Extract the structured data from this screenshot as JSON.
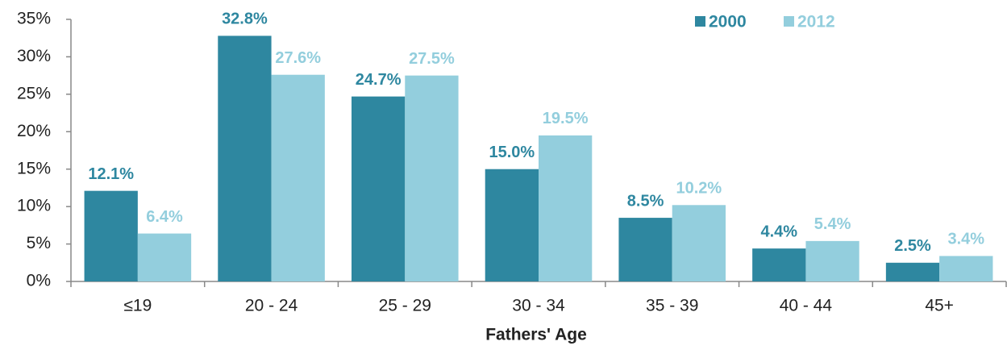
{
  "chart_data": {
    "type": "bar",
    "categories": [
      "≤19",
      "20 - 24",
      "25 - 29",
      "30 - 34",
      "35 - 39",
      "40 - 44",
      "45+"
    ],
    "series": [
      {
        "name": "2000",
        "color": "#2e87a0",
        "values": [
          12.1,
          32.8,
          24.7,
          15.0,
          8.5,
          4.4,
          2.5
        ],
        "value_labels": [
          "12.1%",
          "32.8%",
          "24.7%",
          "15.0%",
          "8.5%",
          "4.4%",
          "2.5%"
        ]
      },
      {
        "name": "2012",
        "color": "#93cedd",
        "values": [
          6.4,
          27.6,
          27.5,
          19.5,
          10.2,
          5.4,
          3.4
        ],
        "value_labels": [
          "6.4%",
          "27.6%",
          "27.5%",
          "19.5%",
          "10.2%",
          "5.4%",
          "3.4%"
        ]
      }
    ],
    "xlabel": "Fathers' Age",
    "ylim": [
      0,
      35
    ],
    "yticks": [
      {
        "value": 0,
        "label": "0%"
      },
      {
        "value": 5,
        "label": "5%"
      },
      {
        "value": 10,
        "label": "10%"
      },
      {
        "value": 15,
        "label": "15%"
      },
      {
        "value": 20,
        "label": "20%"
      },
      {
        "value": 25,
        "label": "25%"
      },
      {
        "value": 30,
        "label": "30%"
      },
      {
        "value": 35,
        "label": "35%"
      }
    ],
    "legend": "top-right",
    "grid": false
  }
}
